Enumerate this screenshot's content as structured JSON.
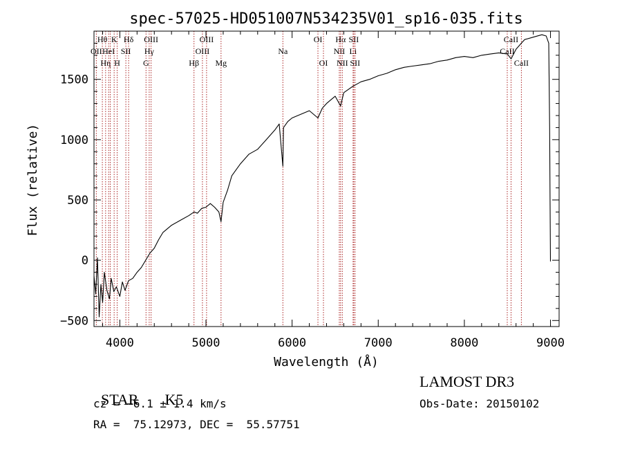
{
  "chart_data": {
    "type": "line",
    "title": "spec-57025-HD051007N534235V01_sp16-035.fits",
    "xlabel": "Wavelength (Å)",
    "ylabel": "Flux (relative)",
    "xlim": [
      3700,
      9100
    ],
    "ylim": [
      -550,
      1900
    ],
    "x_ticks": [
      4000,
      5000,
      6000,
      7000,
      8000,
      9000
    ],
    "x_tick_labels": [
      "4000",
      "5000",
      "6000",
      "7000",
      "8000",
      "9000"
    ],
    "y_ticks": [
      -500,
      0,
      500,
      1000,
      1500
    ],
    "y_tick_labels": [
      "−500",
      "0",
      "500",
      "1000",
      "1500"
    ],
    "grid": false,
    "series": [
      {
        "color": "#000000",
        "x": [
          3700,
          3720,
          3740,
          3760,
          3780,
          3800,
          3820,
          3850,
          3880,
          3900,
          3930,
          3960,
          4000,
          4030,
          4060,
          4100,
          4150,
          4200,
          4250,
          4300,
          4350,
          4400,
          4450,
          4500,
          4600,
          4700,
          4800,
          4862,
          4900,
          4950,
          5000,
          5050,
          5100,
          5150,
          5175,
          5200,
          5250,
          5300,
          5400,
          5500,
          5600,
          5700,
          5800,
          5850,
          5893,
          5900,
          5950,
          6000,
          6100,
          6200,
          6300,
          6350,
          6400,
          6450,
          6500,
          6563,
          6600,
          6700,
          6800,
          6900,
          7000,
          7100,
          7200,
          7300,
          7400,
          7500,
          7600,
          7700,
          7800,
          7900,
          8000,
          8100,
          8200,
          8300,
          8400,
          8500,
          8542,
          8600,
          8662,
          8700,
          8800,
          8900,
          8950,
          8980,
          8990,
          8995,
          9000
        ],
        "y": [
          -130,
          -280,
          20,
          -470,
          -200,
          -350,
          -100,
          -250,
          -320,
          -150,
          -260,
          -220,
          -300,
          -180,
          -250,
          -170,
          -150,
          -100,
          -60,
          0,
          60,
          100,
          170,
          230,
          290,
          330,
          370,
          400,
          390,
          430,
          440,
          470,
          440,
          400,
          320,
          480,
          580,
          700,
          800,
          880,
          920,
          1000,
          1080,
          1130,
          780,
          1100,
          1150,
          1180,
          1210,
          1240,
          1180,
          1260,
          1300,
          1330,
          1360,
          1280,
          1390,
          1440,
          1480,
          1500,
          1530,
          1550,
          1580,
          1600,
          1610,
          1620,
          1630,
          1650,
          1660,
          1680,
          1690,
          1680,
          1700,
          1710,
          1720,
          1710,
          1670,
          1750,
          1800,
          1830,
          1850,
          1870,
          1860,
          1800,
          1100,
          500,
          -10
        ]
      }
    ],
    "line_markers": [
      {
        "x": 3797,
        "label": "Hθ",
        "row": 0
      },
      {
        "x": 3727,
        "label": "OII",
        "row": 1
      },
      {
        "x": 3835,
        "label": "Hη",
        "row": 2
      },
      {
        "x": 3870,
        "label": "HeI",
        "row": 1
      },
      {
        "x": 3889,
        "label": "",
        "row": -1
      },
      {
        "x": 3934,
        "label": "K",
        "row": 0
      },
      {
        "x": 3969,
        "label": "H",
        "row": 2
      },
      {
        "x": 4070,
        "label": "SII",
        "row": 1
      },
      {
        "x": 4102,
        "label": "Hδ",
        "row": 0
      },
      {
        "x": 4304,
        "label": "G",
        "row": 2
      },
      {
        "x": 4341,
        "label": "Hγ",
        "row": 1
      },
      {
        "x": 4363,
        "label": "OIII",
        "row": 0
      },
      {
        "x": 4861,
        "label": "Hβ",
        "row": 2
      },
      {
        "x": 4959,
        "label": "OIII",
        "row": 1
      },
      {
        "x": 5007,
        "label": "OIII",
        "row": 0
      },
      {
        "x": 5175,
        "label": "Mg",
        "row": 2
      },
      {
        "x": 5893,
        "label": "Na",
        "row": 1
      },
      {
        "x": 6300,
        "label": "OI",
        "row": 0
      },
      {
        "x": 6364,
        "label": "OI",
        "row": 2
      },
      {
        "x": 6548,
        "label": "NII",
        "row": 1
      },
      {
        "x": 6563,
        "label": "Hα",
        "row": 0
      },
      {
        "x": 6583,
        "label": "NII",
        "row": 2
      },
      {
        "x": 6708,
        "label": "Li",
        "row": 1
      },
      {
        "x": 6716,
        "label": "SII",
        "row": 0
      },
      {
        "x": 6731,
        "label": "SII",
        "row": 2
      },
      {
        "x": 8498,
        "label": "CaII",
        "row": 1
      },
      {
        "x": 8542,
        "label": "CaII",
        "row": 0
      },
      {
        "x": 8662,
        "label": "CaII",
        "row": 2
      }
    ]
  },
  "info": {
    "class_label": "STAR",
    "subclass_label": "K5",
    "survey": "LAMOST DR3",
    "redshift": "cz = −6.1 ± 1.4 km/s",
    "obs_date": "Obs-Date: 20150102",
    "coords": "RA =  75.12973, DEC =  55.57751"
  },
  "colors": {
    "spectrum": "#000000",
    "marker_line": "#aa2222",
    "axis": "#000000"
  }
}
